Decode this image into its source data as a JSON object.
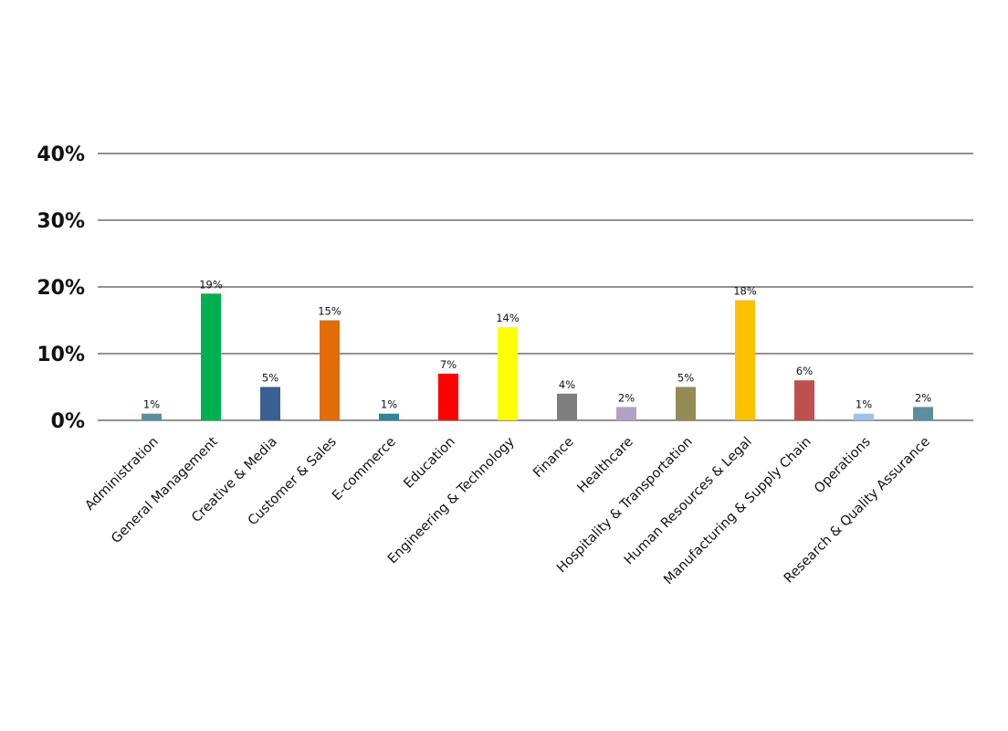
{
  "chart_data": {
    "type": "bar",
    "title": "",
    "xlabel": "",
    "ylabel": "",
    "ylim": [
      0,
      40
    ],
    "y_ticks": [
      0,
      10,
      20,
      30,
      40
    ],
    "y_tick_labels": [
      "0%",
      "10%",
      "20%",
      "30%",
      "40%"
    ],
    "grid": true,
    "legend": "none",
    "categories": [
      "Administration",
      "General Management",
      "Creative & Media",
      "Customer & Sales",
      "E-commerce",
      "Education",
      "Engineering & Technology",
      "Finance",
      "Healthcare",
      "Hospitality & Transportation",
      "Human Resources & Legal",
      "Manufacturing & Supply Chain",
      "Operations",
      "Research & Quality Assurance"
    ],
    "values": [
      1,
      19,
      5,
      15,
      1,
      7,
      14,
      4,
      2,
      5,
      18,
      6,
      1,
      2
    ],
    "data_labels": [
      "1%",
      "19%",
      "5%",
      "15%",
      "1%",
      "7%",
      "14%",
      "4%",
      "2%",
      "5%",
      "18%",
      "6%",
      "1%",
      "2%"
    ],
    "colors": [
      "#5a8fa3",
      "#00b050",
      "#3a5f91",
      "#e36c0a",
      "#31849b",
      "#ff0000",
      "#ffff00",
      "#7f7f7f",
      "#b2a1c7",
      "#948a54",
      "#ffc000",
      "#c0504d",
      "#9dc3e6",
      "#5b8fa0"
    ]
  }
}
